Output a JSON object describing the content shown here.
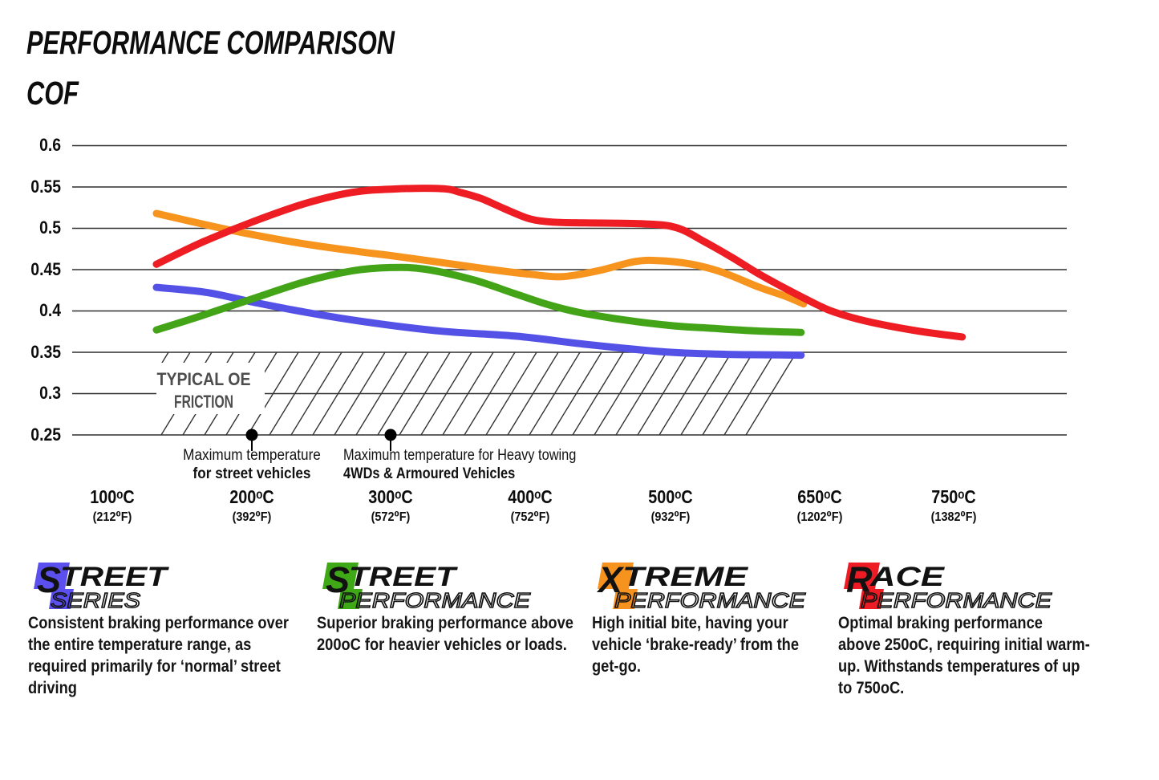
{
  "title": "PERFORMANCE COMPARISON",
  "y_axis_title": "COF",
  "chart_data": {
    "type": "line",
    "title": "PERFORMANCE COMPARISON",
    "ylabel": "COF",
    "ylim": [
      0.25,
      0.6
    ],
    "grid": "horizontal",
    "y_ticks": [
      "0.6",
      "0.55",
      "0.5",
      "0.45",
      "0.4",
      "0.35",
      "0.3",
      "0.25"
    ],
    "y_tick_values": [
      0.6,
      0.55,
      0.5,
      0.45,
      0.4,
      0.35,
      0.3,
      0.25
    ],
    "x_ticks": [
      {
        "celsius": "100ᵒC",
        "fahrenheit": "(212⁰F)",
        "t": 100
      },
      {
        "celsius": "200ᵒC",
        "fahrenheit": "(392⁰F)",
        "t": 200
      },
      {
        "celsius": "300ᵒC",
        "fahrenheit": "(572⁰F)",
        "t": 300
      },
      {
        "celsius": "400ᵒC",
        "fahrenheit": "(752⁰F)",
        "t": 400
      },
      {
        "celsius": "500ᵒC",
        "fahrenheit": "(932⁰F)",
        "t": 500
      },
      {
        "celsius": "650ᵒC",
        "fahrenheit": "(1202⁰F)",
        "t": 650
      },
      {
        "celsius": "750ᵒC",
        "fahrenheit": "(1382⁰F)",
        "t": 750
      }
    ],
    "series": [
      {
        "name": "Street Series",
        "color": "#5452e6",
        "points": [
          [
            100,
            0.4285
          ],
          [
            140,
            0.4225
          ],
          [
            177,
            0.411
          ],
          [
            220,
            0.3985
          ],
          [
            270,
            0.3865
          ],
          [
            330,
            0.3755
          ],
          [
            390,
            0.3695
          ],
          [
            450,
            0.359
          ],
          [
            510,
            0.3505
          ],
          [
            560,
            0.3475
          ],
          [
            590,
            0.347
          ],
          [
            620,
            0.3465
          ]
        ]
      },
      {
        "name": "Street Performance",
        "color": "#43a418",
        "points": [
          [
            100,
            0.377
          ],
          [
            136,
            0.394
          ],
          [
            177,
            0.4145
          ],
          [
            220,
            0.4355
          ],
          [
            258,
            0.4485
          ],
          [
            289,
            0.4525
          ],
          [
            317,
            0.4505
          ],
          [
            356,
            0.4375
          ],
          [
            388,
            0.4215
          ],
          [
            414,
            0.4085
          ],
          [
            440,
            0.3985
          ],
          [
            478,
            0.389
          ],
          [
            517,
            0.382
          ],
          [
            543,
            0.3795
          ],
          [
            582,
            0.376
          ],
          [
            620,
            0.374
          ]
        ]
      },
      {
        "name": "Xtreme Performance",
        "color": "#f7941e",
        "points": [
          [
            100,
            0.518
          ],
          [
            142,
            0.5035
          ],
          [
            177,
            0.4925
          ],
          [
            220,
            0.481
          ],
          [
            265,
            0.4715
          ],
          [
            289,
            0.467
          ],
          [
            330,
            0.4585
          ],
          [
            368,
            0.4505
          ],
          [
            401,
            0.4445
          ],
          [
            427,
            0.4415
          ],
          [
            456,
            0.4485
          ],
          [
            485,
            0.4595
          ],
          [
            504,
            0.461
          ],
          [
            530,
            0.457
          ],
          [
            556,
            0.447
          ],
          [
            586,
            0.4288
          ],
          [
            608,
            0.4175
          ],
          [
            622,
            0.4085
          ]
        ]
      },
      {
        "name": "Race Performance",
        "color": "#ee1c23",
        "points": [
          [
            100,
            0.4565
          ],
          [
            136,
            0.4825
          ],
          [
            177,
            0.5075
          ],
          [
            220,
            0.53
          ],
          [
            258,
            0.5435
          ],
          [
            291,
            0.5475
          ],
          [
            330,
            0.548
          ],
          [
            345,
            0.5435
          ],
          [
            362,
            0.536
          ],
          [
            381,
            0.5235
          ],
          [
            401,
            0.5115
          ],
          [
            420,
            0.5075
          ],
          [
            446,
            0.5065
          ],
          [
            491,
            0.5055
          ],
          [
            519,
            0.501
          ],
          [
            543,
            0.483
          ],
          [
            564,
            0.465
          ],
          [
            586,
            0.4448
          ],
          [
            608,
            0.4267
          ],
          [
            634,
            0.4068
          ],
          [
            647,
            0.3985
          ],
          [
            673,
            0.3875
          ],
          [
            711,
            0.3765
          ],
          [
            750,
            0.3685
          ]
        ]
      }
    ],
    "oe_zone": {
      "label": "TYPICAL OE\nFRICTION",
      "from": 0.25,
      "to": 0.35
    },
    "markers": [
      {
        "t": 200,
        "line1": "Maximum temperature",
        "line2": "for street vehicles"
      },
      {
        "t": 300,
        "line1": "Maximum temperature for Heavy towing",
        "line2": "4WDs & Armoured Vehicles"
      }
    ]
  },
  "oe_label_line1": "TYPICAL OE",
  "oe_label_line2": "FRICTION",
  "marker1": {
    "line1": "Maximum temperature",
    "line2": "for street vehicles"
  },
  "marker2": {
    "line1": "Maximum temperature for Heavy towing",
    "line2": "4WDs & Armoured Vehicles"
  },
  "legend": [
    {
      "word1_initial": "S",
      "word1_rest": "TREET",
      "word2": "SERIES",
      "color": "#5b50ee",
      "description": "Consistent braking performance over\nthe entire temperature range, as\nrequired primarily for ‘normal’ street\ndriving"
    },
    {
      "word1_initial": "S",
      "word1_rest": "TREET",
      "word2": "PERFORMANCE",
      "color": "#3ea817",
      "description": "Superior braking performance above\n200oC for heavier vehicles or loads."
    },
    {
      "word1_initial": "X",
      "word1_rest": "TREME",
      "word2": "PERFORMANCE",
      "color": "#f6921e",
      "description": "High initial bite, having your\nvehicle ‘brake-ready’ from the\nget-go."
    },
    {
      "word1_initial": "R",
      "word1_rest": "ACE",
      "word2": "PERFORMANCE",
      "color": "#ed1c24",
      "description": "Optimal braking performance\nabove 250oC, requiring initial warm-\nup. Withstands temperatures of up\nto 750oC."
    }
  ]
}
